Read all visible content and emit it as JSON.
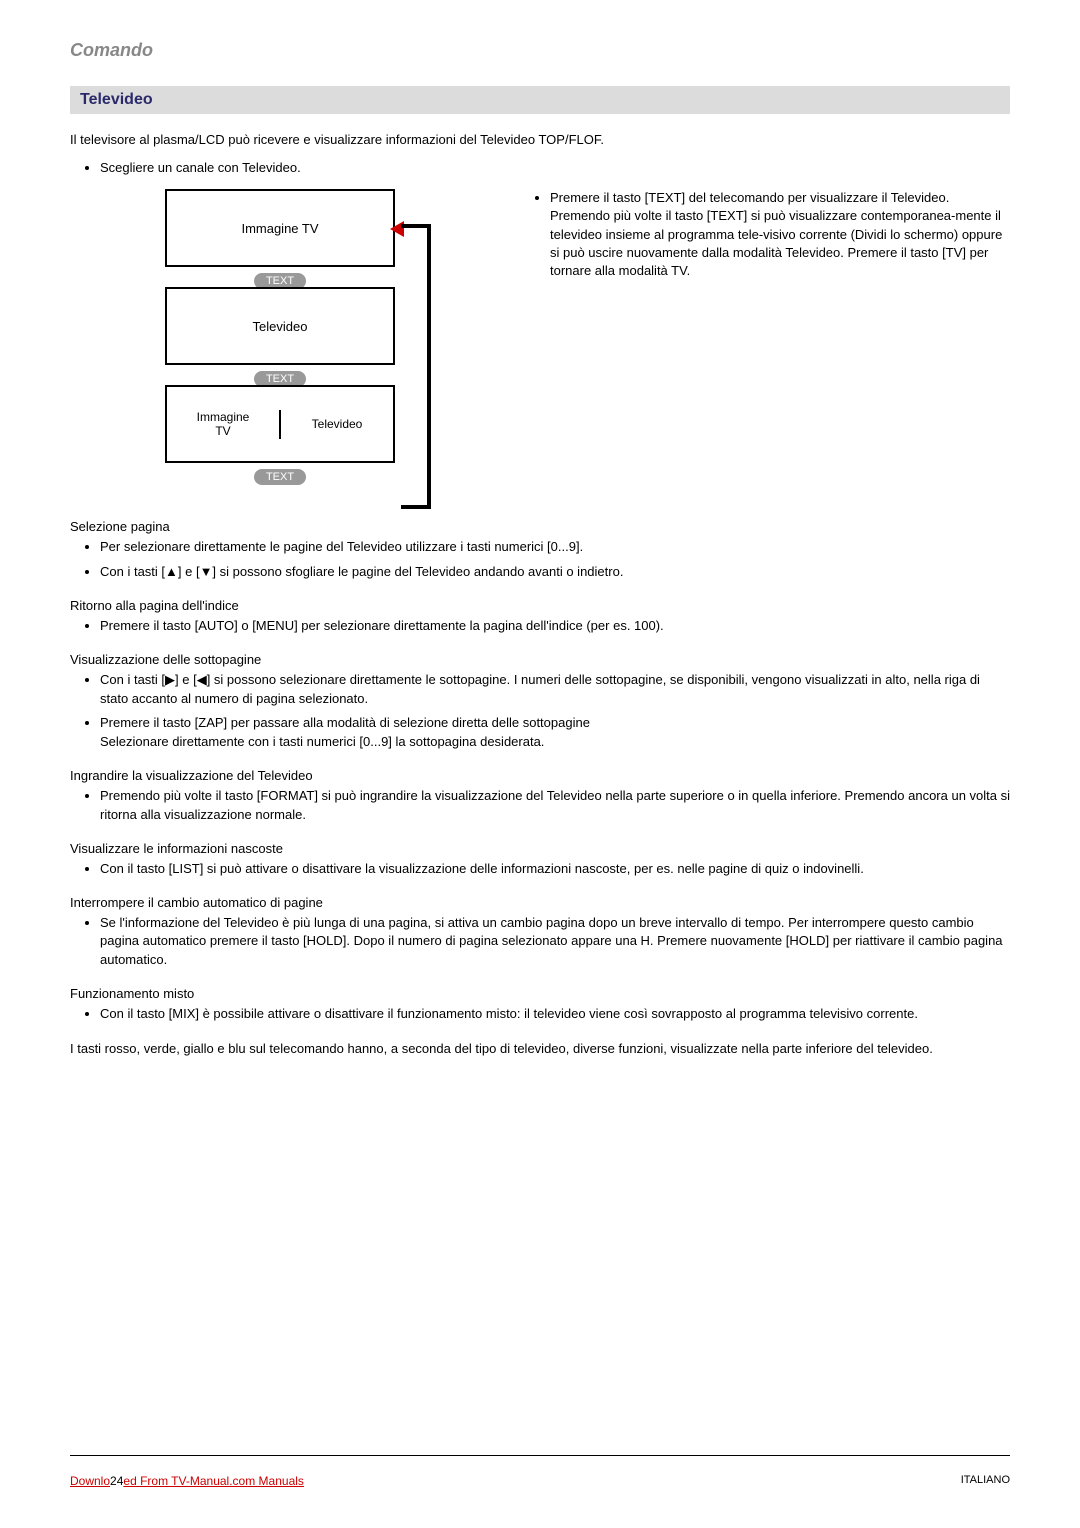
{
  "header": {
    "title": "Comando"
  },
  "section": {
    "title": "Televideo"
  },
  "intro": "Il televisore al plasma/LCD può ricevere e visualizzare informazioni del Televideo TOP/FLOF.",
  "top_bullet": "Scegliere un canale con Televideo.",
  "diagram": {
    "box1": "Immagine TV",
    "text_btn": "TEXT",
    "box2": "Televideo",
    "box3_left": "Immagine\nTV",
    "box3_right": "Televideo"
  },
  "right_bullet": "Premere il tasto [TEXT] del telecomando per visualizzare il Televideo. Premendo più volte il tasto [TEXT] si può visualizzare contemporanea-mente il televideo insieme al programma tele-visivo corrente (Dividi lo schermo) oppure si può uscire nuovamente dalla modalità Televideo. Premere il tasto [TV] per tornare alla modalità TV.",
  "sections": [
    {
      "title": "Selezione pagina",
      "items": [
        "Per selezionare direttamente le pagine del Televideo utilizzare i tasti numerici [0...9].",
        "Con i tasti [▲] e [▼] si possono sfogliare le pagine del Televideo andando avanti o indietro."
      ]
    },
    {
      "title": "Ritorno alla pagina dell'indice",
      "items": [
        "Premere il tasto [AUTO] o [MENU] per selezionare direttamente la pagina dell'indice (per es. 100)."
      ]
    },
    {
      "title": "Visualizzazione delle sottopagine",
      "items": [
        "Con i tasti [▶] e [◀] si possono selezionare direttamente le sottopagine. I numeri delle sottopagine, se disponibili, vengono visualizzati in alto, nella riga di stato accanto al numero di pagina selezionato.",
        "Premere il tasto [ZAP] per passare alla modalità di selezione diretta delle sottopagine\nSelezionare direttamente con i tasti numerici [0...9] la sottopagina desiderata."
      ]
    },
    {
      "title": "Ingrandire la visualizzazione del Televideo",
      "items": [
        "Premendo più volte il tasto [FORMAT] si può ingrandire la visualizzazione del Televideo nella parte superiore o in quella inferiore. Premendo ancora un volta si ritorna alla visualizzazione normale."
      ]
    },
    {
      "title": "Visualizzare le informazioni nascoste",
      "items": [
        "Con il tasto [LIST] si può attivare o disattivare la visualizzazione delle informazioni nascoste, per es. nelle pagine di quiz o indovinelli."
      ]
    },
    {
      "title": "Interrompere il cambio automatico di pagine",
      "items": [
        "Se l'informazione del Televideo è più lunga di una pagina, si attiva un cambio pagina dopo un breve intervallo di tempo. Per interrompere questo cambio pagina automatico premere il tasto [HOLD]. Dopo il numero di pagina selezionato appare una H. Premere nuovamente [HOLD] per riattivare il cambio pagina automatico."
      ]
    },
    {
      "title": "Funzionamento misto",
      "items": [
        "Con il tasto [MIX] è possibile attivare o disattivare il funzionamento misto: il televideo viene così sovrapposto al programma televisivo corrente."
      ]
    }
  ],
  "final_para": "I tasti rosso, verde, giallo e blu sul telecomando hanno, a seconda del tipo di televideo, diverse funzioni, visualizzate nella parte inferiore del televideo.",
  "footer": {
    "left_prefix": "Downlo",
    "page_num": "24",
    "left_suffix": "ed From TV-Manual.com Manuals",
    "right": "ITALIANO"
  },
  "colors": {
    "header_text": "#888888",
    "section_bg": "#dcdcdc",
    "section_text": "#2a2a6a",
    "arrow_red": "#cc0000",
    "btn_gray": "#999999",
    "link_red": "#cc0000"
  }
}
